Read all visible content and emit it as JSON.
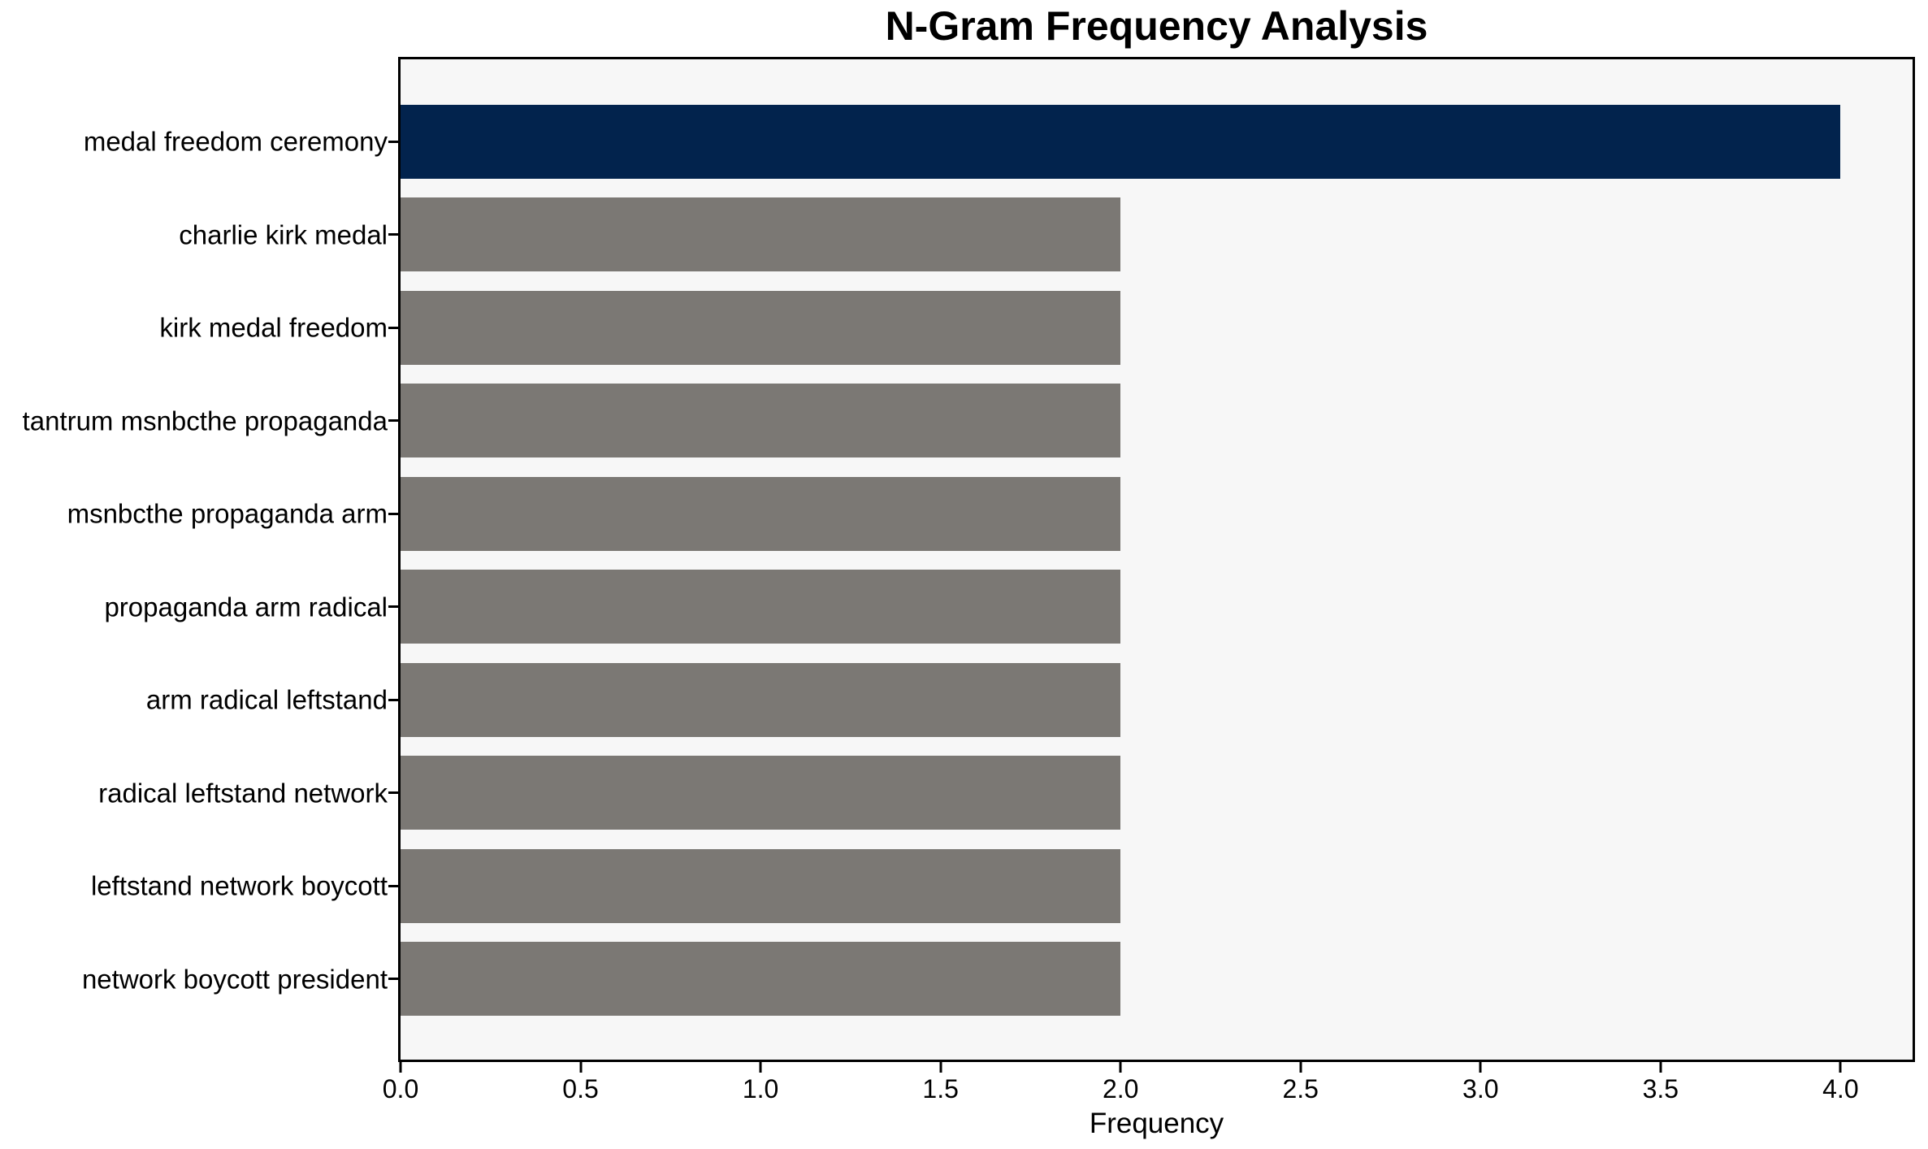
{
  "chart_data": {
    "type": "bar",
    "orientation": "horizontal",
    "title": "N-Gram Frequency Analysis",
    "xlabel": "Frequency",
    "ylabel": "",
    "categories": [
      "medal freedom ceremony",
      "charlie kirk medal",
      "kirk medal freedom",
      "tantrum msnbcthe propaganda",
      "msnbcthe propaganda arm",
      "propaganda arm radical",
      "arm radical leftstand",
      "radical leftstand network",
      "leftstand network boycott",
      "network boycott president"
    ],
    "values": [
      4,
      2,
      2,
      2,
      2,
      2,
      2,
      2,
      2,
      2
    ],
    "xlim": [
      0,
      4.2
    ],
    "x_tick_labels": [
      "0.0",
      "0.5",
      "1.0",
      "1.5",
      "2.0",
      "2.5",
      "3.0",
      "3.5",
      "4.0"
    ],
    "grid": false,
    "legend": "none",
    "bar_colors": [
      "#02234d",
      "#7b7874",
      "#7b7874",
      "#7b7874",
      "#7b7874",
      "#7b7874",
      "#7b7874",
      "#7b7874",
      "#7b7874",
      "#7b7874"
    ],
    "colors": {
      "highlight_bar": "#02234d",
      "default_bar": "#7b7874",
      "plot_background": "#f7f7f7",
      "figure_background": "#ffffff",
      "axis_line": "#000000",
      "text": "#000000"
    }
  }
}
